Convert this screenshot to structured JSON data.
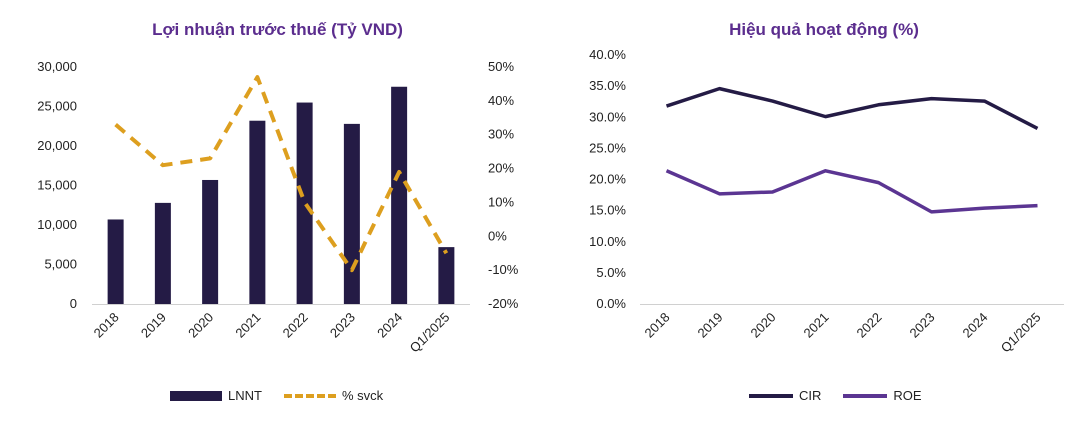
{
  "chart_data": [
    {
      "type": "bar",
      "title": "Lợi nhuận trước thuế (Tỷ VND)",
      "categories": [
        "2018",
        "2019",
        "2020",
        "2021",
        "2022",
        "2023",
        "2024",
        "Q1/2025"
      ],
      "series": [
        {
          "name": "LNNT",
          "type": "bar",
          "axis": "left",
          "color": "#241b45",
          "values": [
            10700,
            12800,
            15700,
            23200,
            25500,
            22800,
            27500,
            7200
          ]
        },
        {
          "name": "% svck",
          "type": "line-dashed",
          "axis": "right",
          "color": "#dd9f1f",
          "values": [
            33,
            21,
            23,
            47,
            10,
            -10,
            19,
            -5
          ]
        }
      ],
      "ylim_left": [
        0,
        30000
      ],
      "yticks_left": [
        "0",
        "5,000",
        "10,000",
        "15,000",
        "20,000",
        "25,000",
        "30,000"
      ],
      "ylim_right": [
        -20,
        50
      ],
      "yticks_right": [
        "-20%",
        "-10%",
        "0%",
        "10%",
        "20%",
        "30%",
        "40%",
        "50%"
      ],
      "legend": [
        "LNNT",
        "% svck"
      ],
      "legend_position": "bottom",
      "grid": false
    },
    {
      "type": "line",
      "title": "Hiệu quả hoạt động (%)",
      "categories": [
        "2018",
        "2019",
        "2020",
        "2021",
        "2022",
        "2023",
        "2024",
        "Q1/2025"
      ],
      "series": [
        {
          "name": "CIR",
          "color": "#241b45",
          "values": [
            31.8,
            34.6,
            32.6,
            30.1,
            32.0,
            33.0,
            32.6,
            28.2
          ]
        },
        {
          "name": "ROE",
          "color": "#5b3592",
          "values": [
            21.4,
            17.7,
            18.0,
            21.4,
            19.5,
            14.8,
            15.4,
            15.8
          ]
        }
      ],
      "ylim": [
        0,
        40
      ],
      "yticks": [
        "0.0%",
        "5.0%",
        "10.0%",
        "15.0%",
        "20.0%",
        "25.0%",
        "30.0%",
        "35.0%",
        "40.0%"
      ],
      "legend": [
        "CIR",
        "ROE"
      ],
      "legend_position": "bottom",
      "grid": false
    }
  ]
}
